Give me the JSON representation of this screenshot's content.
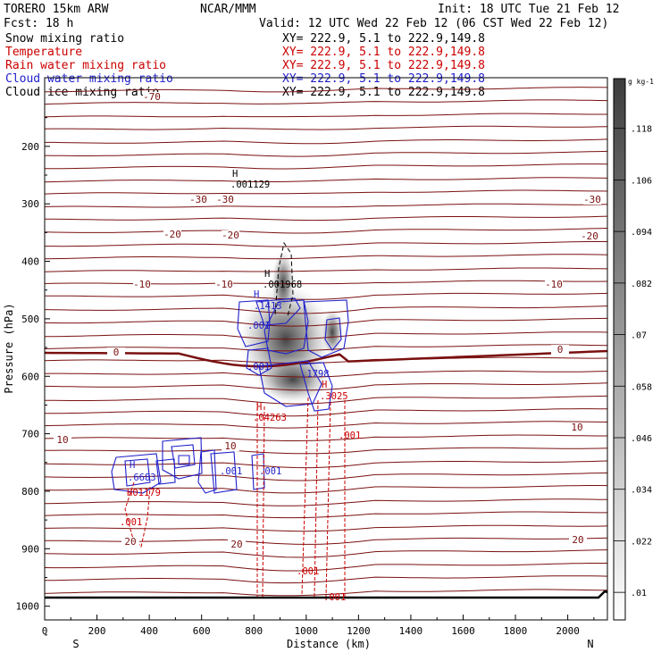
{
  "header": {
    "model": "TORERO  15km ARW",
    "center": "NCAR/MMM",
    "init": "Init: 18 UTC Tue 21 Feb 12",
    "fcst": "Fcst:   18 h",
    "valid": "Valid: 12 UTC Wed 22 Feb 12 (06 CST Wed 22 Feb 12)"
  },
  "fields": [
    {
      "name": "Snow mixing ratio",
      "xy": "XY= 222.9,  5.1 to 222.9,149.8",
      "color": "#000000"
    },
    {
      "name": "Temperature",
      "xy": "XY= 222.9,  5.1 to 222.9,149.8",
      "color": "#cc0000"
    },
    {
      "name": "Rain water mixing ratio",
      "xy": "XY= 222.9,  5.1 to 222.9,149.8",
      "color": "#cc0000"
    },
    {
      "name": "Cloud water mixing ratio",
      "xy": "XY= 222.9,  5.1 to 222.9,149.8",
      "color": "#1f1fcc"
    },
    {
      "name": "Cloud ice mixing ratio",
      "xy": "XY= 222.9,  5.1 to 222.9,149.8",
      "color": "#000000"
    }
  ],
  "chart_data": {
    "type": "contour-cross-section",
    "xlabel": "Distance (km)",
    "ylabel": "Pressure (hPa)",
    "xlim": [
      0,
      2180
    ],
    "ylim": [
      1050,
      100
    ],
    "x_ticks": [
      "0",
      "200",
      "400",
      "600",
      "800",
      "1000",
      "1200",
      "1400",
      "1600",
      "1800",
      "2000"
    ],
    "y_ticks": [
      "200",
      "300",
      "400",
      "500",
      "600",
      "700",
      "800",
      "900",
      "1000"
    ],
    "x_ends": {
      "left": "S",
      "right": "N"
    },
    "colorbar": {
      "unit": "g kg-1",
      "ticks": [
        ".01",
        ".022",
        ".034",
        ".046",
        ".058",
        ".07",
        ".082",
        ".094",
        ".106",
        ".118"
      ]
    },
    "temperature_labels": [
      "-70",
      "-30",
      "-30",
      "-30",
      "-20",
      "-20",
      "-20",
      "-10",
      "-10",
      "-10",
      "0",
      "0",
      "10",
      "10",
      "10",
      "20",
      "20",
      "20"
    ],
    "annotations": [
      {
        "text": "H",
        "series": "cloud ice"
      },
      {
        "text": ".001129",
        "series": "cloud ice"
      },
      {
        "text": "H",
        "series": "snow"
      },
      {
        "text": ".001968",
        "series": "snow"
      },
      {
        "text": "H",
        "series": "cloud water"
      },
      {
        "text": ".1413",
        "series": "cloud water"
      },
      {
        "text": ".001",
        "series": "cloud water"
      },
      {
        "text": ".001",
        "series": "cloud water"
      },
      {
        "text": ".1798",
        "series": "cloud water"
      },
      {
        "text": "H",
        "series": "cloud water"
      },
      {
        "text": ".6683",
        "series": "cloud water"
      },
      {
        "text": ".001",
        "series": "cloud water"
      },
      {
        "text": ".001",
        "series": "cloud water"
      },
      {
        "text": "H",
        "series": "rain"
      },
      {
        "text": ".04263",
        "series": "rain"
      },
      {
        "text": "H",
        "series": "rain"
      },
      {
        "text": ".3025",
        "series": "rain"
      },
      {
        "text": ".001",
        "series": "rain"
      },
      {
        "text": "H",
        "series": "rain"
      },
      {
        "text": ".01179",
        "series": "rain"
      },
      {
        "text": ".001",
        "series": "rain"
      },
      {
        "text": ".001",
        "series": "rain"
      },
      {
        "text": ".001",
        "series": "rain"
      }
    ]
  }
}
